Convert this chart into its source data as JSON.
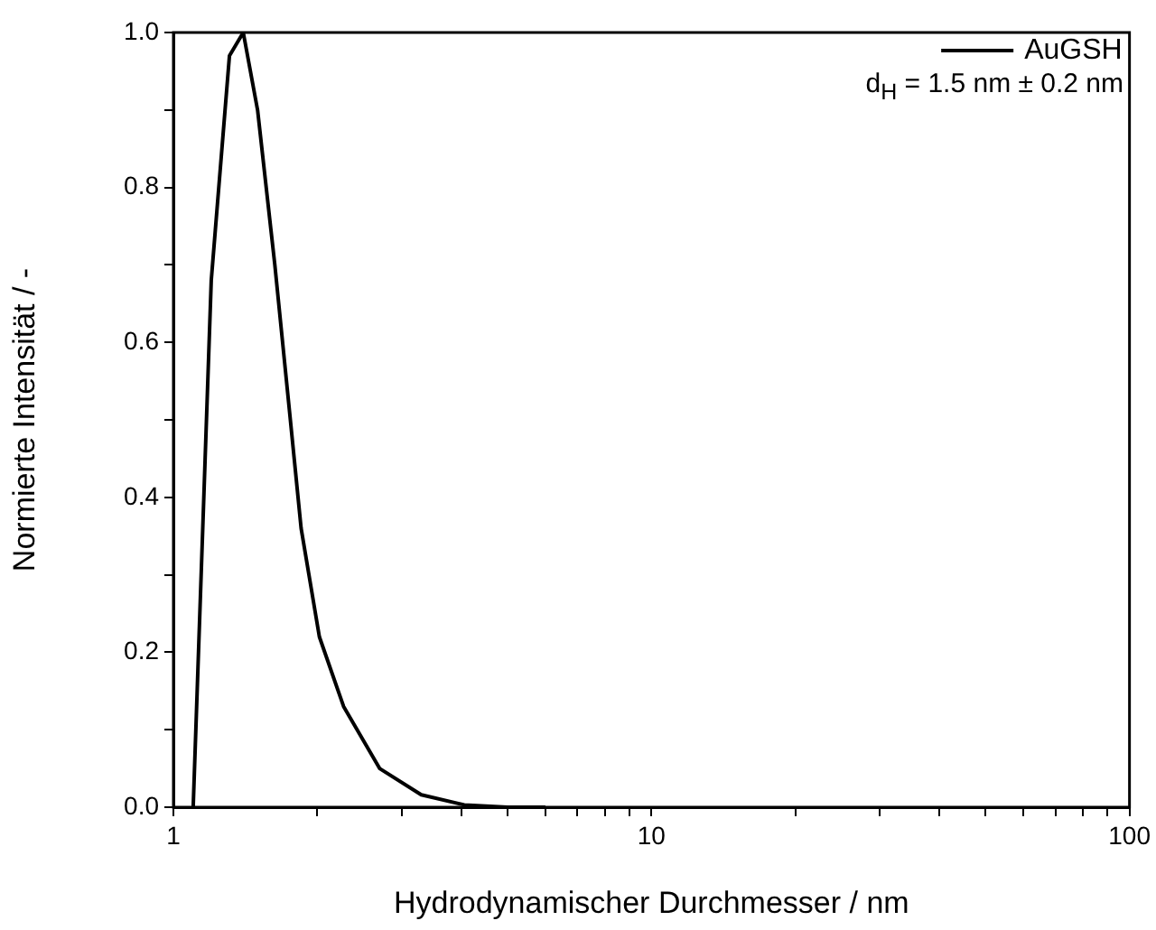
{
  "chart_data": {
    "type": "line",
    "xlabel": "Hydrodynamischer Durchmesser / nm",
    "ylabel": "Normierte Intensität / -",
    "log": "x",
    "legend": "top right",
    "grid": false,
    "marker": "none",
    "line_style": "solid",
    "xlim": [
      1,
      100
    ],
    "ylim": [
      0,
      1
    ],
    "xticks": [
      1,
      {
        "value": 2,
        "label": null
      },
      {
        "value": 3,
        "label": null
      },
      {
        "value": 4,
        "label": null
      },
      {
        "value": 5,
        "label": null
      },
      {
        "value": 6,
        "label": null
      },
      {
        "value": 7,
        "label": null
      },
      {
        "value": 8,
        "label": null
      },
      {
        "value": 9,
        "label": null
      },
      10,
      {
        "value": 20,
        "label": null
      },
      {
        "value": 30,
        "label": null
      },
      {
        "value": 40,
        "label": null
      },
      {
        "value": 50,
        "label": null
      },
      {
        "value": 60,
        "label": null
      },
      {
        "value": 70,
        "label": null
      },
      {
        "value": 80,
        "label": null
      },
      {
        "value": 90,
        "label": null
      },
      100
    ],
    "yticks": [
      {
        "value": 0,
        "label": "0.0"
      },
      {
        "value": 0.1,
        "label": null
      },
      {
        "value": 0.2,
        "label": "0.2"
      },
      {
        "value": 0.3,
        "label": null
      },
      {
        "value": 0.4,
        "label": "0.4"
      },
      {
        "value": 0.5,
        "label": null
      },
      {
        "value": 0.6,
        "label": "0.6"
      },
      {
        "value": 0.7,
        "label": null
      },
      {
        "value": 0.8,
        "label": "0.8"
      },
      {
        "value": 0.9,
        "label": null
      },
      {
        "value": 1,
        "label": "1.0"
      }
    ],
    "annotations": [
      "d$_{H}$ = 1.5 nm ± 0.2 nm"
    ],
    "series": [
      {
        "name": "AuGSH",
        "color": "#000000",
        "x": [
          1.1,
          1.2,
          1.31,
          1.4,
          1.5,
          1.63,
          1.75,
          1.85,
          2.02,
          2.27,
          2.7,
          3.3,
          4.06,
          5.0,
          6.0
        ],
        "values": [
          0,
          0.68,
          0.97,
          1,
          0.9,
          0.7,
          0.51,
          0.36,
          0.22,
          0.13,
          0.05,
          0.016,
          0.003,
          0,
          0
        ]
      }
    ]
  }
}
